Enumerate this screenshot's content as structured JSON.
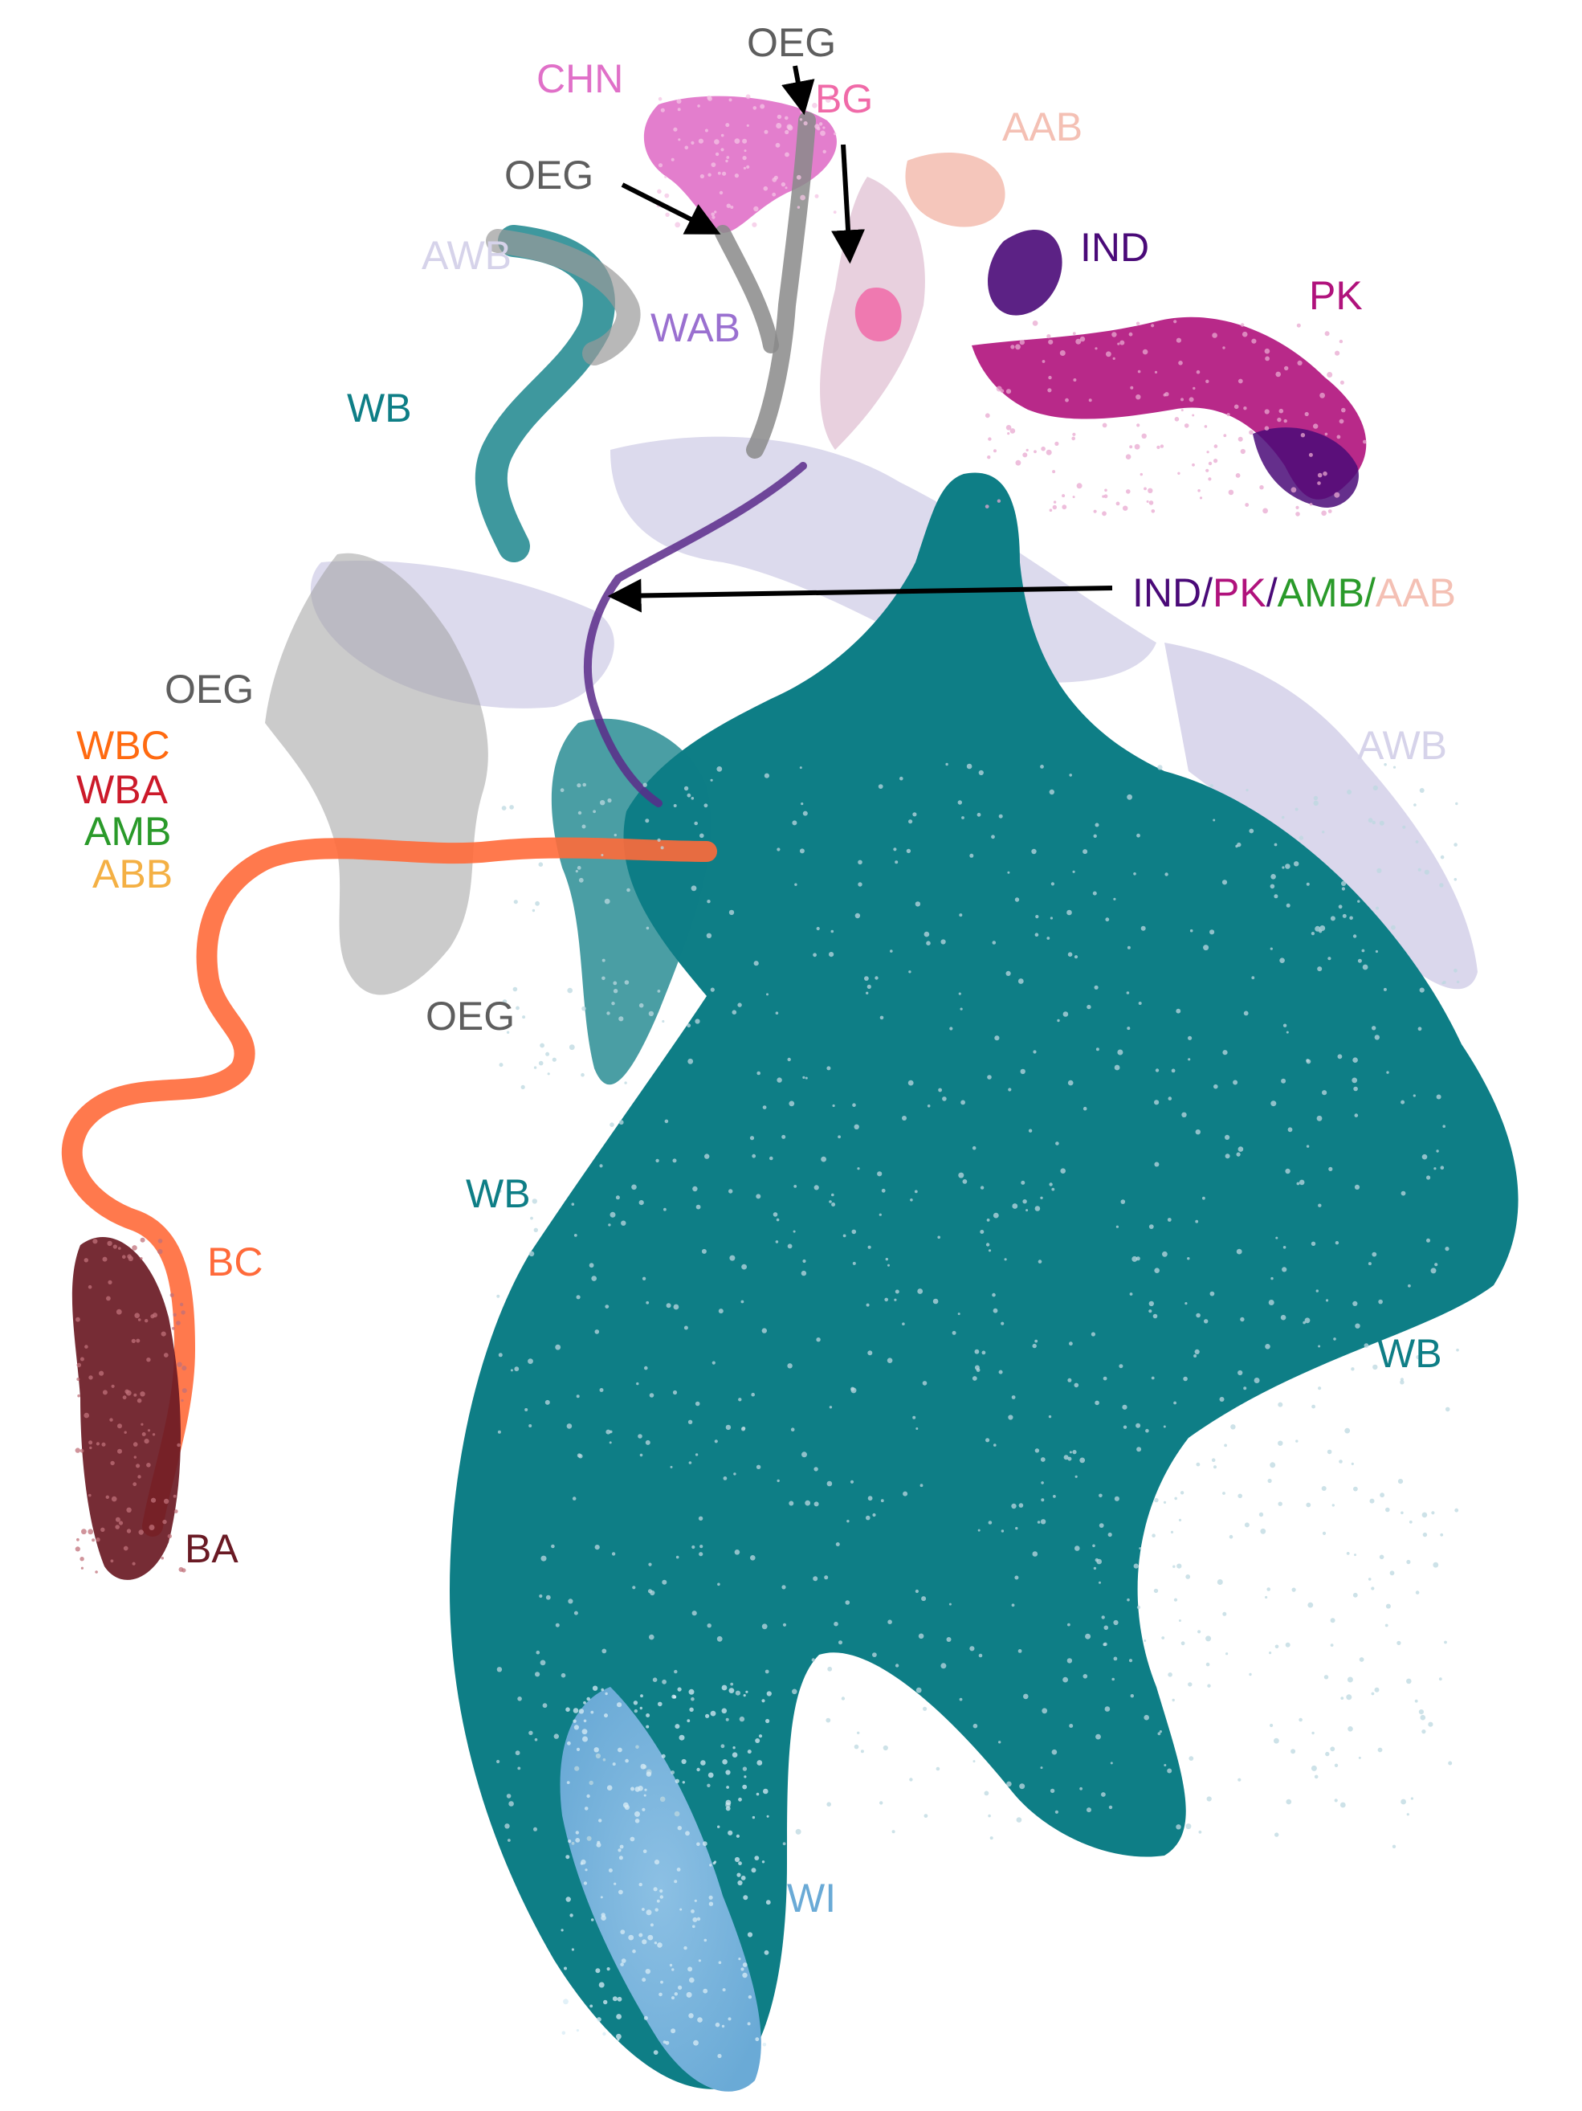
{
  "chart_data": {
    "type": "scatter",
    "title": "",
    "xlabel": "",
    "ylabel": "",
    "grid": false,
    "axes_visible": false,
    "legend": "none",
    "colors": {
      "WB": "#0e7e86",
      "WI": "#6aaad6",
      "AWB": "#d6d3ea",
      "OEG": "#5e5e5e",
      "CHN": "#e070c8",
      "BG": "#f06aa8",
      "AAB": "#f4c0b4",
      "IND": "#4a0a78",
      "PK": "#b0127c",
      "WAB": "#9a70d0",
      "WBC": "#ff6a10",
      "WBA": "#cc1a2a",
      "AMB": "#2a9a2a",
      "ABB": "#f4b044",
      "BC": "#ff6a3a",
      "BA": "#6a1a24",
      "arrow": "#000000"
    },
    "labels": [
      {
        "text": "OEG",
        "color": "#5e5e5e"
      },
      {
        "text": "CHN",
        "color": "#e070c8"
      },
      {
        "text": "BG",
        "color": "#f06aa8"
      },
      {
        "text": "AAB",
        "color": "#f4c0b4"
      },
      {
        "text": "OEG",
        "color": "#5e5e5e"
      },
      {
        "text": "IND",
        "color": "#4a0a78"
      },
      {
        "text": "AWB",
        "color": "#d6d3ea"
      },
      {
        "text": "PK",
        "color": "#b0127c"
      },
      {
        "text": "WAB",
        "color": "#9a70d0"
      },
      {
        "text": "WB",
        "color": "#0e7e86"
      },
      {
        "text": "OEG",
        "color": "#5e5e5e"
      },
      {
        "text": "AWB",
        "color": "#d6d3ea"
      },
      {
        "text": "WBC",
        "color": "#ff6a10"
      },
      {
        "text": "WBA",
        "color": "#cc1a2a"
      },
      {
        "text": "AMB",
        "color": "#2a9a2a"
      },
      {
        "text": "ABB",
        "color": "#f4b044"
      },
      {
        "text": "OEG",
        "color": "#5e5e5e"
      },
      {
        "text": "WB",
        "color": "#0e7e86"
      },
      {
        "text": "BC",
        "color": "#ff6a3a"
      },
      {
        "text": "WB",
        "color": "#0e7e86"
      },
      {
        "text": "BA",
        "color": "#6a1a24"
      },
      {
        "text": "WI",
        "color": "#6aaad6"
      }
    ],
    "annotation": {
      "parts": [
        {
          "text": "IND",
          "color": "#4a0a78"
        },
        {
          "text": "/",
          "color": "#4a0a78"
        },
        {
          "text": "PK",
          "color": "#b0127c"
        },
        {
          "text": "/",
          "color": "#4a0a78"
        },
        {
          "text": "AMB",
          "color": "#2a9a2a"
        },
        {
          "text": "/",
          "color": "#2a9a2a"
        },
        {
          "text": "AAB",
          "color": "#f4c0b4"
        }
      ]
    }
  }
}
